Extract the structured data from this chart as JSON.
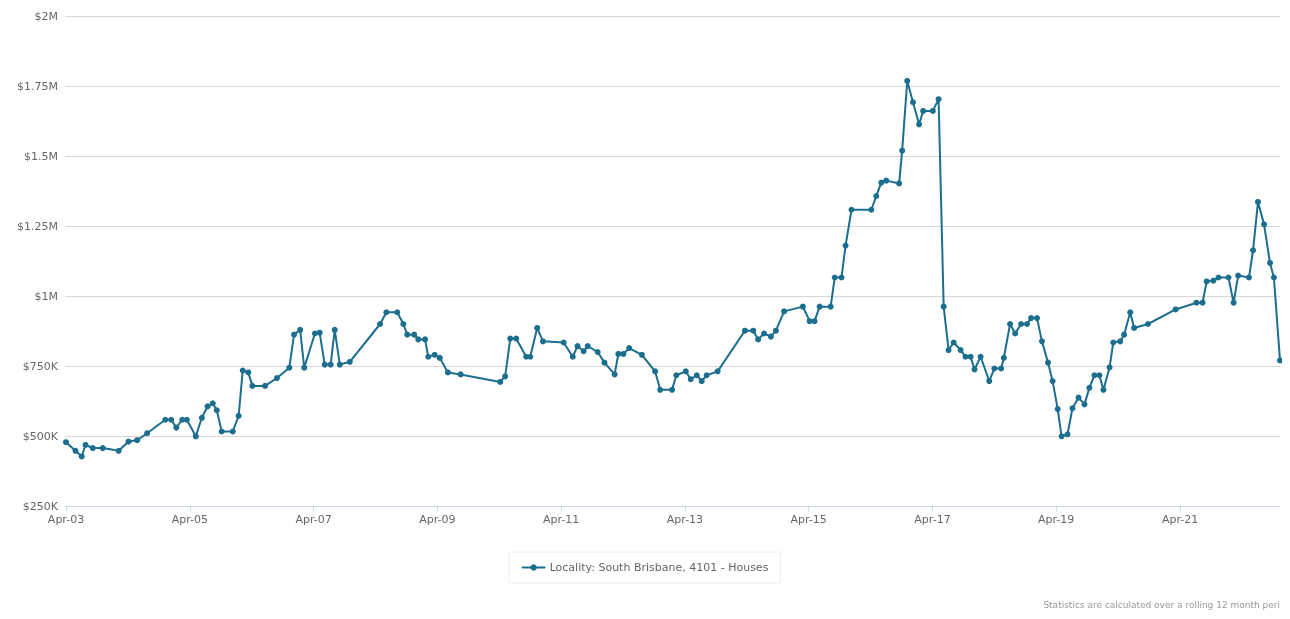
{
  "chart_data": {
    "type": "line",
    "x": [
      "2003-04-01",
      "2003-05-27",
      "2003-07-03",
      "2003-07-25",
      "2003-09-06",
      "2003-11-04",
      "2004-02-06",
      "2004-04-04",
      "2004-05-25",
      "2004-07-23",
      "2004-11-07",
      "2004-12-12",
      "2005-01-11",
      "2005-02-15",
      "2005-03-14",
      "2005-05-06",
      "2005-06-11",
      "2005-07-15",
      "2005-08-14",
      "2005-09-07",
      "2005-10-06",
      "2005-12-10",
      "2006-01-14",
      "2006-02-07",
      "2006-03-12",
      "2006-04-05",
      "2006-06-19",
      "2006-08-28",
      "2006-11-09",
      "2006-12-07",
      "2007-01-12",
      "2007-02-05",
      "2007-04-09",
      "2007-05-07",
      "2007-06-06",
      "2007-07-11",
      "2007-08-04",
      "2007-09-03",
      "2007-11-01",
      "2008-04-28",
      "2008-06-04",
      "2008-08-07",
      "2008-09-12",
      "2008-10-05",
      "2008-11-15",
      "2008-12-09",
      "2009-01-18",
      "2009-02-06",
      "2009-03-16",
      "2009-04-15",
      "2009-06-02",
      "2009-08-16",
      "2010-04-07",
      "2010-05-06",
      "2010-06-05",
      "2010-07-10",
      "2010-09-07",
      "2010-10-01",
      "2010-11-11",
      "2010-12-15",
      "2011-04-16",
      "2011-06-09",
      "2011-07-07",
      "2011-08-12",
      "2011-09-05",
      "2011-11-03",
      "2011-12-13",
      "2012-02-11",
      "2012-03-04",
      "2012-04-03",
      "2012-05-07",
      "2012-07-21",
      "2012-10-07",
      "2012-11-06",
      "2013-01-15",
      "2013-02-09",
      "2013-04-06",
      "2013-05-05",
      "2013-06-10",
      "2013-07-09",
      "2013-08-07",
      "2013-10-11",
      "2014-03-21",
      "2014-05-09",
      "2014-06-07",
      "2014-07-12",
      "2014-08-21",
      "2014-09-20",
      "2014-11-07",
      "2015-02-26",
      "2015-04-07",
      "2015-05-06",
      "2015-06-05",
      "2015-08-09",
      "2015-09-02",
      "2015-10-12",
      "2015-11-05",
      "2015-12-10",
      "2016-04-05",
      "2016-05-04",
      "2016-06-03",
      "2016-07-02",
      "2016-09-16",
      "2016-10-04",
      "2016-11-03",
      "2016-12-07",
      "2017-01-12",
      "2017-02-05",
      "2017-04-03",
      "2017-05-07",
      "2017-06-06",
      "2017-07-05",
      "2017-08-04",
      "2017-09-14",
      "2017-10-13",
      "2017-11-12",
      "2017-12-05",
      "2018-01-10",
      "2018-03-02",
      "2018-04-01",
      "2018-05-11",
      "2018-05-27",
      "2018-07-03",
      "2018-08-02",
      "2018-09-06",
      "2018-10-11",
      "2018-11-04",
      "2018-12-09",
      "2019-01-07",
      "2019-02-12",
      "2019-03-11",
      "2019-04-10",
      "2019-05-03",
      "2019-06-07",
      "2019-07-06",
      "2019-08-11",
      "2019-09-15",
      "2019-10-14",
      "2019-11-13",
      "2019-12-12",
      "2020-01-05",
      "2020-02-10",
      "2020-03-03",
      "2020-04-13",
      "2020-05-06",
      "2020-06-11",
      "2020-07-04",
      "2020-09-24",
      "2021-03-06",
      "2021-07-07",
      "2021-08-12",
      "2021-09-05",
      "2021-10-15",
      "2021-11-14",
      "2022-01-12",
      "2022-02-11",
      "2022-03-10",
      "2022-05-13",
      "2022-06-06",
      "2022-07-05",
      "2022-08-10",
      "2022-09-14",
      "2022-10-07",
      "2022-11-12"
    ],
    "series": [
      {
        "name": "Locality: South Brisbane, 4101 - Houses",
        "color": "#1b6e8e",
        "values": [
          478000,
          447000,
          427000,
          468000,
          457000,
          457000,
          447000,
          480000,
          485000,
          510000,
          558000,
          558000,
          530000,
          558000,
          558000,
          499000,
          565000,
          606000,
          617000,
          592000,
          516000,
          516000,
          572000,
          734000,
          727000,
          679000,
          679000,
          707000,
          744000,
          862000,
          879000,
          744000,
          866000,
          869000,
          755000,
          755000,
          879000,
          755000,
          765000,
          900000,
          942000,
          942000,
          900000,
          862000,
          862000,
          845000,
          845000,
          783000,
          790000,
          779000,
          727000,
          720000,
          693000,
          713000,
          848000,
          848000,
          783000,
          783000,
          886000,
          838000,
          834000,
          783000,
          821000,
          803000,
          821000,
          800000,
          762000,
          720000,
          793000,
          793000,
          814000,
          790000,
          731000,
          665000,
          665000,
          717000,
          731000,
          703000,
          717000,
          696000,
          717000,
          731000,
          876000,
          876000,
          845000,
          866000,
          855000,
          876000,
          945000,
          962000,
          910000,
          910000,
          962000,
          962000,
          1066000,
          1066000,
          1180000,
          1308000,
          1308000,
          1357000,
          1405000,
          1412000,
          1402000,
          1519000,
          1768000,
          1692000,
          1613000,
          1661000,
          1661000,
          1703000,
          962000,
          807000,
          834000,
          807000,
          783000,
          783000,
          738000,
          783000,
          696000,
          741000,
          741000,
          779000,
          900000,
          866000,
          900000,
          900000,
          921000,
          921000,
          838000,
          762000,
          696000,
          596000,
          499000,
          506000,
          599000,
          637000,
          613000,
          672000,
          717000,
          717000,
          665000,
          745000,
          834000,
          838000,
          862000,
          942000,
          886000,
          900000,
          952000,
          976000,
          976000,
          1052000,
          1055000,
          1066000,
          1066000,
          976000,
          1073000,
          1066000,
          1163000,
          1336000,
          1256000,
          1118000,
          1066000,
          770000
        ]
      }
    ],
    "xlim": [
      "2003-04-01",
      "2022-11-12"
    ],
    "xticks": [
      {
        "value": "2003-04-01",
        "label": "Apr-03"
      },
      {
        "value": "2005-04-01",
        "label": "Apr-05"
      },
      {
        "value": "2007-04-01",
        "label": "Apr-07"
      },
      {
        "value": "2009-04-01",
        "label": "Apr-09"
      },
      {
        "value": "2011-04-01",
        "label": "Apr-11"
      },
      {
        "value": "2013-04-01",
        "label": "Apr-13"
      },
      {
        "value": "2015-04-01",
        "label": "Apr-15"
      },
      {
        "value": "2017-04-01",
        "label": "Apr-17"
      },
      {
        "value": "2019-04-01",
        "label": "Apr-19"
      },
      {
        "value": "2021-04-01",
        "label": "Apr-21"
      }
    ],
    "ylim": [
      250000,
      2000000
    ],
    "yticks": [
      {
        "value": 250000,
        "label": "$250K"
      },
      {
        "value": 500000,
        "label": "$500K"
      },
      {
        "value": 750000,
        "label": "$750K"
      },
      {
        "value": 1000000,
        "label": "$1M"
      },
      {
        "value": 1250000,
        "label": "$1.25M"
      },
      {
        "value": 1500000,
        "label": "$1.5M"
      },
      {
        "value": 1750000,
        "label": "$1.75M"
      },
      {
        "value": 2000000,
        "label": "$2M"
      }
    ],
    "grid": "y",
    "legend": "bottom",
    "marker": "circle",
    "line_style": "solid",
    "annotations": [
      "Statistics are calculated over a rolling 12 month peri"
    ]
  }
}
